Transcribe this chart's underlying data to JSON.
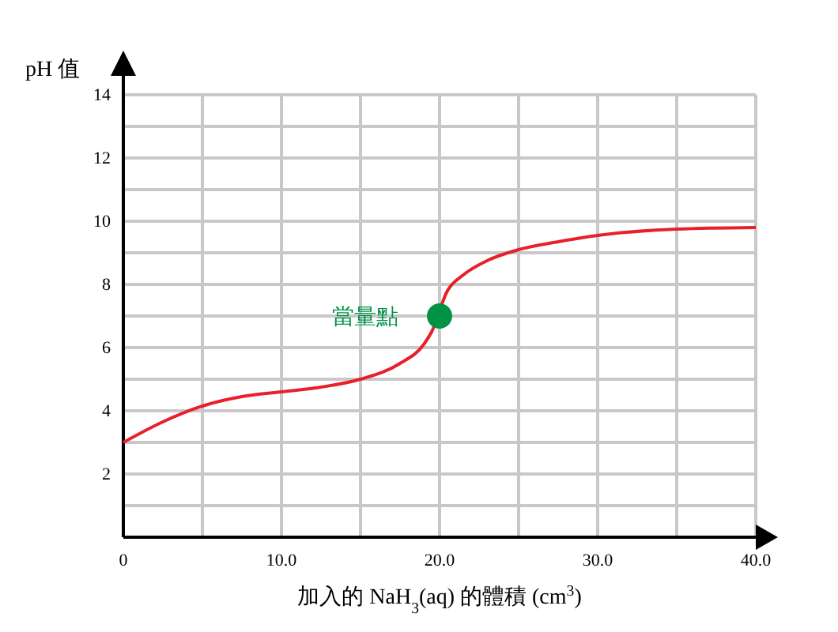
{
  "chart_data": {
    "type": "line",
    "xlabel": "加入的 NaH$_{3}$(aq) 的體積 (cm$^{3}$)",
    "ylabel": "pH 值",
    "xlim": [
      0,
      40
    ],
    "ylim": [
      0,
      14
    ],
    "xticks": [
      {
        "value": 0,
        "label": "0"
      },
      {
        "value": 5,
        "label": null
      },
      {
        "value": 10,
        "label": "10.0"
      },
      {
        "value": 15,
        "label": null
      },
      {
        "value": 20,
        "label": "20.0"
      },
      {
        "value": 25,
        "label": null
      },
      {
        "value": 30,
        "label": "30.0"
      },
      {
        "value": 35,
        "label": null
      },
      {
        "value": 40,
        "label": "40.0"
      }
    ],
    "yticks": [
      {
        "value": 0,
        "label": null
      },
      {
        "value": 1,
        "label": null
      },
      2,
      {
        "value": 3,
        "label": null
      },
      4,
      {
        "value": 5,
        "label": null
      },
      6,
      {
        "value": 7,
        "label": null
      },
      8,
      {
        "value": 9,
        "label": null
      },
      10,
      {
        "value": 11,
        "label": null
      },
      12,
      {
        "value": 13,
        "label": null
      },
      14
    ],
    "grid": true,
    "legend": false,
    "series": [
      {
        "color": "#e8202a",
        "marker": "none",
        "line_style": "solid",
        "x": [
          0,
          2.5,
          5,
          7.5,
          10,
          12.5,
          15,
          17.5,
          19,
          19.5,
          20.5,
          21.5,
          23,
          25,
          27.5,
          30,
          35,
          40
        ],
        "values": [
          3,
          3.65,
          4.15,
          4.45,
          4.6,
          4.75,
          5.0,
          5.5,
          6.1,
          6.5,
          7.8,
          8.3,
          8.75,
          9.1,
          9.35,
          9.55,
          9.75,
          9.8
        ]
      },
      {
        "type": "scatter",
        "name": "當量點",
        "color": "#009245",
        "marker": "circle",
        "x": [
          20
        ],
        "values": [
          7
        ]
      }
    ]
  }
}
